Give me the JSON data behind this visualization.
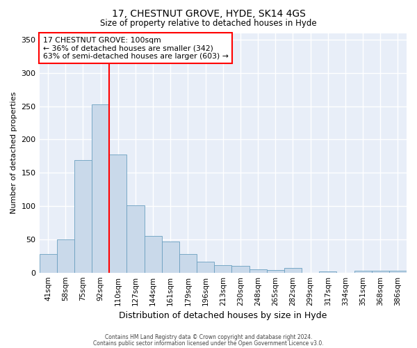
{
  "title_line1": "17, CHESTNUT GROVE, HYDE, SK14 4GS",
  "title_line2": "Size of property relative to detached houses in Hyde",
  "xlabel": "Distribution of detached houses by size in Hyde",
  "ylabel": "Number of detached properties",
  "bar_color": "#c9d9ea",
  "bar_edge_color": "#6a9fc0",
  "background_color": "#e8eef8",
  "grid_color": "#ffffff",
  "vline_color": "red",
  "annotation_line1": "17 CHESTNUT GROVE: 100sqm",
  "annotation_line2": "← 36% of detached houses are smaller (342)",
  "annotation_line3": "63% of semi-detached houses are larger (603) →",
  "annotation_box_color": "white",
  "annotation_box_edge": "red",
  "footer_line1": "Contains HM Land Registry data © Crown copyright and database right 2024.",
  "footer_line2": "Contains public sector information licensed under the Open Government Licence v3.0.",
  "categories": [
    "41sqm",
    "58sqm",
    "75sqm",
    "92sqm",
    "110sqm",
    "127sqm",
    "144sqm",
    "161sqm",
    "179sqm",
    "196sqm",
    "213sqm",
    "230sqm",
    "248sqm",
    "265sqm",
    "282sqm",
    "299sqm",
    "317sqm",
    "334sqm",
    "351sqm",
    "368sqm",
    "386sqm"
  ],
  "values": [
    28,
    50,
    169,
    253,
    178,
    101,
    55,
    47,
    28,
    16,
    11,
    10,
    5,
    4,
    7,
    0,
    2,
    0,
    3,
    3,
    3
  ],
  "ylim": [
    0,
    360
  ],
  "yticks": [
    0,
    50,
    100,
    150,
    200,
    250,
    300,
    350
  ],
  "vline_index": 3.5
}
